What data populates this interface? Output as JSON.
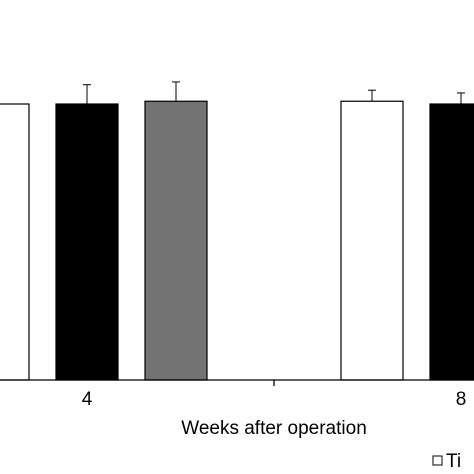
{
  "chart_data": {
    "type": "bar",
    "categories": [
      "4",
      "8"
    ],
    "series": [
      {
        "name": "Ti",
        "color": "#ffffff",
        "values": [
          100,
          101
        ],
        "errors": [
          null,
          4
        ]
      },
      {
        "color": "#000000",
        "values": [
          100,
          100
        ],
        "errors": [
          7,
          4
        ]
      },
      {
        "color": "#737373",
        "values": [
          101,
          null
        ],
        "errors": [
          7,
          null
        ]
      }
    ],
    "xlabel": "Weeks after operation",
    "legend": {
      "placement": "bottom-right"
    }
  }
}
